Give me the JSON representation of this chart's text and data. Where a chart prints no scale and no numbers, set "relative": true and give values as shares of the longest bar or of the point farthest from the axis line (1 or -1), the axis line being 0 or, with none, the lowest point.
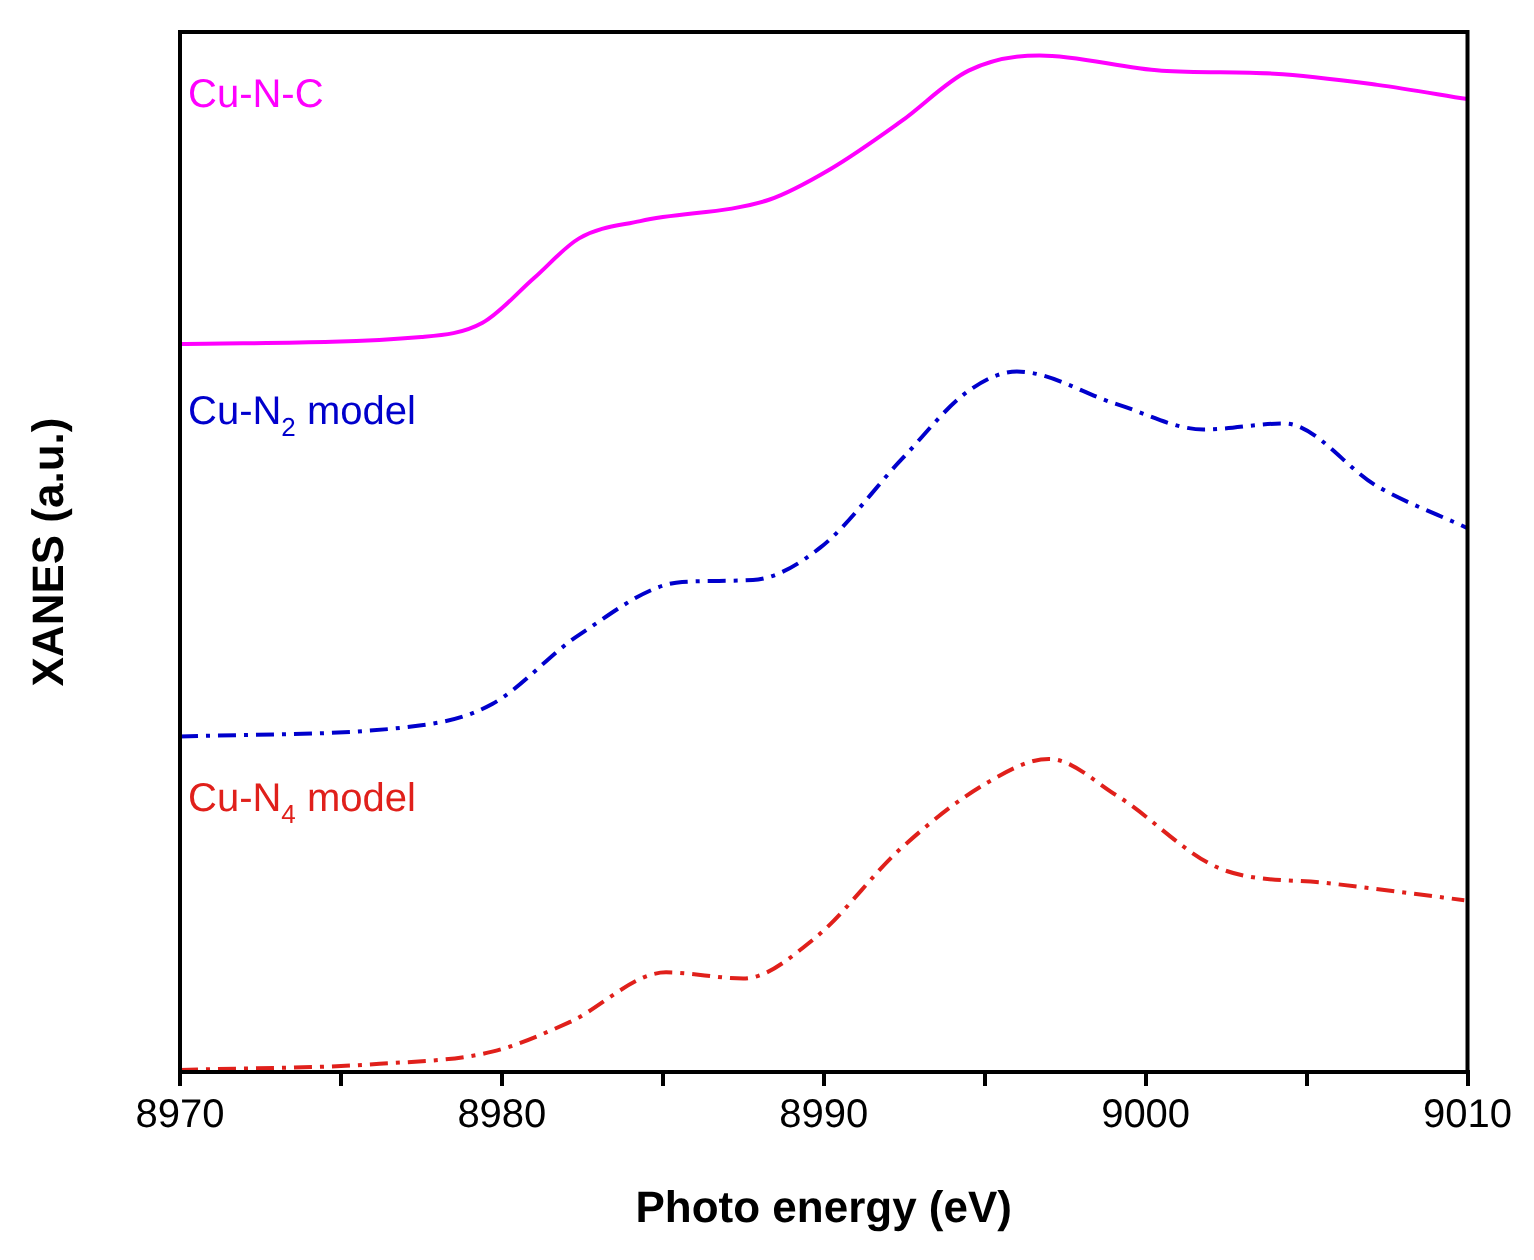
{
  "chart_data": {
    "type": "line",
    "relative": true,
    "xlabel": "Photo energy (eV)",
    "ylabel": "XANES (a.u.)",
    "xlim": [
      8970,
      9010
    ],
    "xticks": [
      8970,
      {
        "value": 8975,
        "label": null
      },
      8980,
      {
        "value": 8985,
        "label": null
      },
      8990,
      {
        "value": 8995,
        "label": null
      },
      9000,
      {
        "value": 9005,
        "label": null
      },
      9010
    ],
    "legend": false,
    "grid": false,
    "marker": "none",
    "series": [
      {
        "name": "Cu-N-C",
        "color": "#ff00ff",
        "line_style": "solid",
        "x": [
          8970,
          8977.5,
          8979.4,
          8981,
          8982.4,
          8984.3,
          8988.3,
          8990.2,
          8992.4,
          8994.5,
          8996.7,
          9000.5,
          9004,
          9007.2,
          9010
        ],
        "values": [
          0.716,
          0.723,
          0.737,
          0.781,
          0.82,
          0.837,
          0.858,
          0.888,
          0.935,
          0.985,
          1,
          0.985,
          0.982,
          0.971,
          0.957
        ]
      },
      {
        "name": "Cu-N$_{2}$ model",
        "color": "#0000cc",
        "line_style": "dashed",
        "x": [
          8970,
          8977.5,
          8979.7,
          8982.4,
          8985.6,
          8987.8,
          8989.9,
          8992.4,
          8994.5,
          8996,
          8999.1,
          9001.8,
          9004.3,
          9007.2,
          9010
        ],
        "values": [
          0.33,
          0.341,
          0.362,
          0.43,
          0.482,
          0.484,
          0.516,
          0.602,
          0.67,
          0.689,
          0.657,
          0.632,
          0.638,
          0.576,
          0.535
        ]
      },
      {
        "name": "Cu-N$_{4}$ model",
        "color": "#e0201b",
        "line_style": "dashed",
        "x": [
          8970,
          8976.2,
          8979.7,
          8982.1,
          8985.1,
          8987.5,
          8989.7,
          8992.4,
          8995.1,
          8997,
          8999.1,
          9002.4,
          9005.6,
          9009.9
        ],
        "values": [
          0.002,
          0.008,
          0.02,
          0.049,
          0.098,
          0.092,
          0.131,
          0.22,
          0.285,
          0.308,
          0.272,
          0.199,
          0.186,
          0.169
        ]
      }
    ]
  }
}
